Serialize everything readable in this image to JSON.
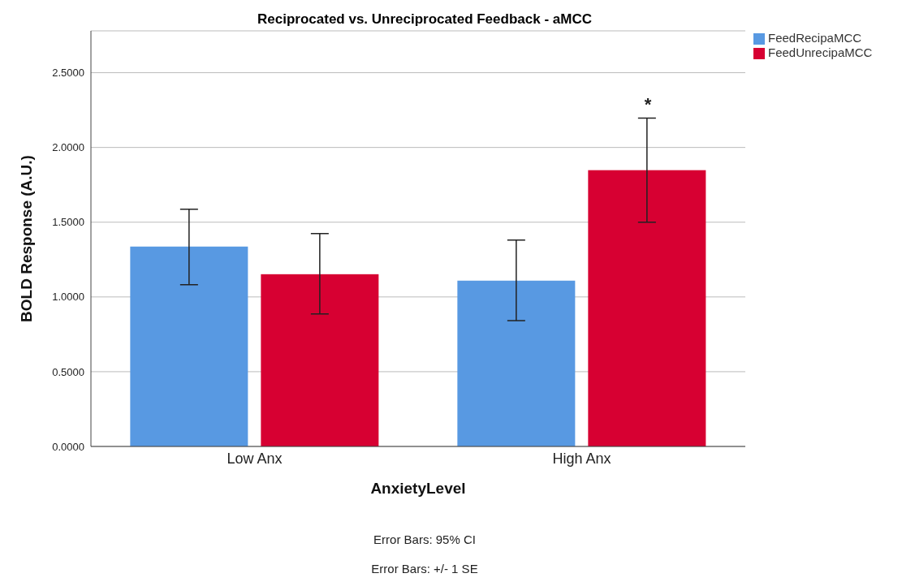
{
  "chart_data": {
    "type": "bar",
    "title": "Reciprocated vs. Unreciprocated Feedback - aMCC",
    "xlabel": "AnxietyLevel",
    "ylabel": "BOLD Response (A.U.)",
    "categories": [
      "Low Anx",
      "High Anx"
    ],
    "series": [
      {
        "name": "FeedRecipaMCC",
        "color": "#5899e2",
        "values": [
          1.337,
          1.109
        ],
        "errors": [
          [
            1.082,
            1.587
          ],
          [
            0.842,
            1.38
          ]
        ]
      },
      {
        "name": "FeedUnrecipaMCC",
        "color": "#d70032",
        "values": [
          1.152,
          1.848
        ],
        "errors": [
          [
            0.886,
            1.424
          ],
          [
            1.5,
            2.196
          ]
        ]
      }
    ],
    "ylim": [
      0,
      2.78
    ],
    "yticks": [
      {
        "value": 0,
        "label": "0.0000"
      },
      {
        "value": 0.5,
        "label": "0.5000"
      },
      {
        "value": 1,
        "label": "1.0000"
      },
      {
        "value": 1.5,
        "label": "1.5000"
      },
      {
        "value": 2,
        "label": "2.0000"
      },
      {
        "value": 2.5,
        "label": "2.5000"
      }
    ],
    "grid": "y",
    "legend": "top right",
    "annotations": [
      "*",
      "Error Bars: 95% CI",
      "Error Bars: +/- 1 SE"
    ]
  }
}
